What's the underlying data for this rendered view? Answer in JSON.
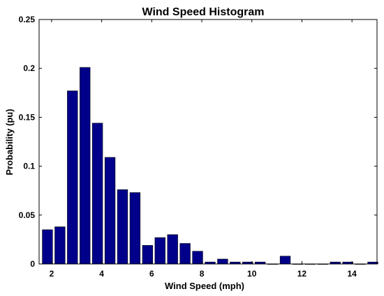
{
  "chart_data": {
    "type": "bar",
    "title": "Wind Speed Histogram",
    "xlabel": "Wind Speed (mph)",
    "ylabel": "Probability (pu)",
    "xlim": [
      1.5,
      15.0
    ],
    "ylim": [
      0,
      0.25
    ],
    "x_ticks": [
      2,
      4,
      6,
      8,
      10,
      12,
      14
    ],
    "x_tick_labels": [
      "2",
      "4",
      "6",
      "8",
      "10",
      "12",
      "14"
    ],
    "y_ticks": [
      0,
      0.05,
      0.1,
      0.15,
      0.2,
      0.25
    ],
    "y_tick_labels": [
      "0",
      "0.05",
      "0.1",
      "0.15",
      "0.2",
      "0.25"
    ],
    "grid": false,
    "bar_color": "#00008B",
    "x": [
      1.833,
      2.333,
      2.833,
      3.333,
      3.833,
      4.333,
      4.833,
      5.333,
      5.833,
      6.333,
      6.833,
      7.333,
      7.833,
      8.333,
      8.833,
      9.333,
      9.833,
      10.333,
      10.833,
      11.333,
      11.833,
      12.333,
      12.833,
      13.333,
      13.833,
      14.333,
      14.833
    ],
    "values": [
      0.035,
      0.038,
      0.177,
      0.201,
      0.144,
      0.109,
      0.076,
      0.073,
      0.019,
      0.027,
      0.03,
      0.021,
      0.013,
      0.002,
      0.005,
      0.002,
      0.002,
      0.002,
      0.0,
      0.008,
      0.0,
      0.0,
      0.0,
      0.002,
      0.002,
      0.0,
      0.002
    ]
  }
}
